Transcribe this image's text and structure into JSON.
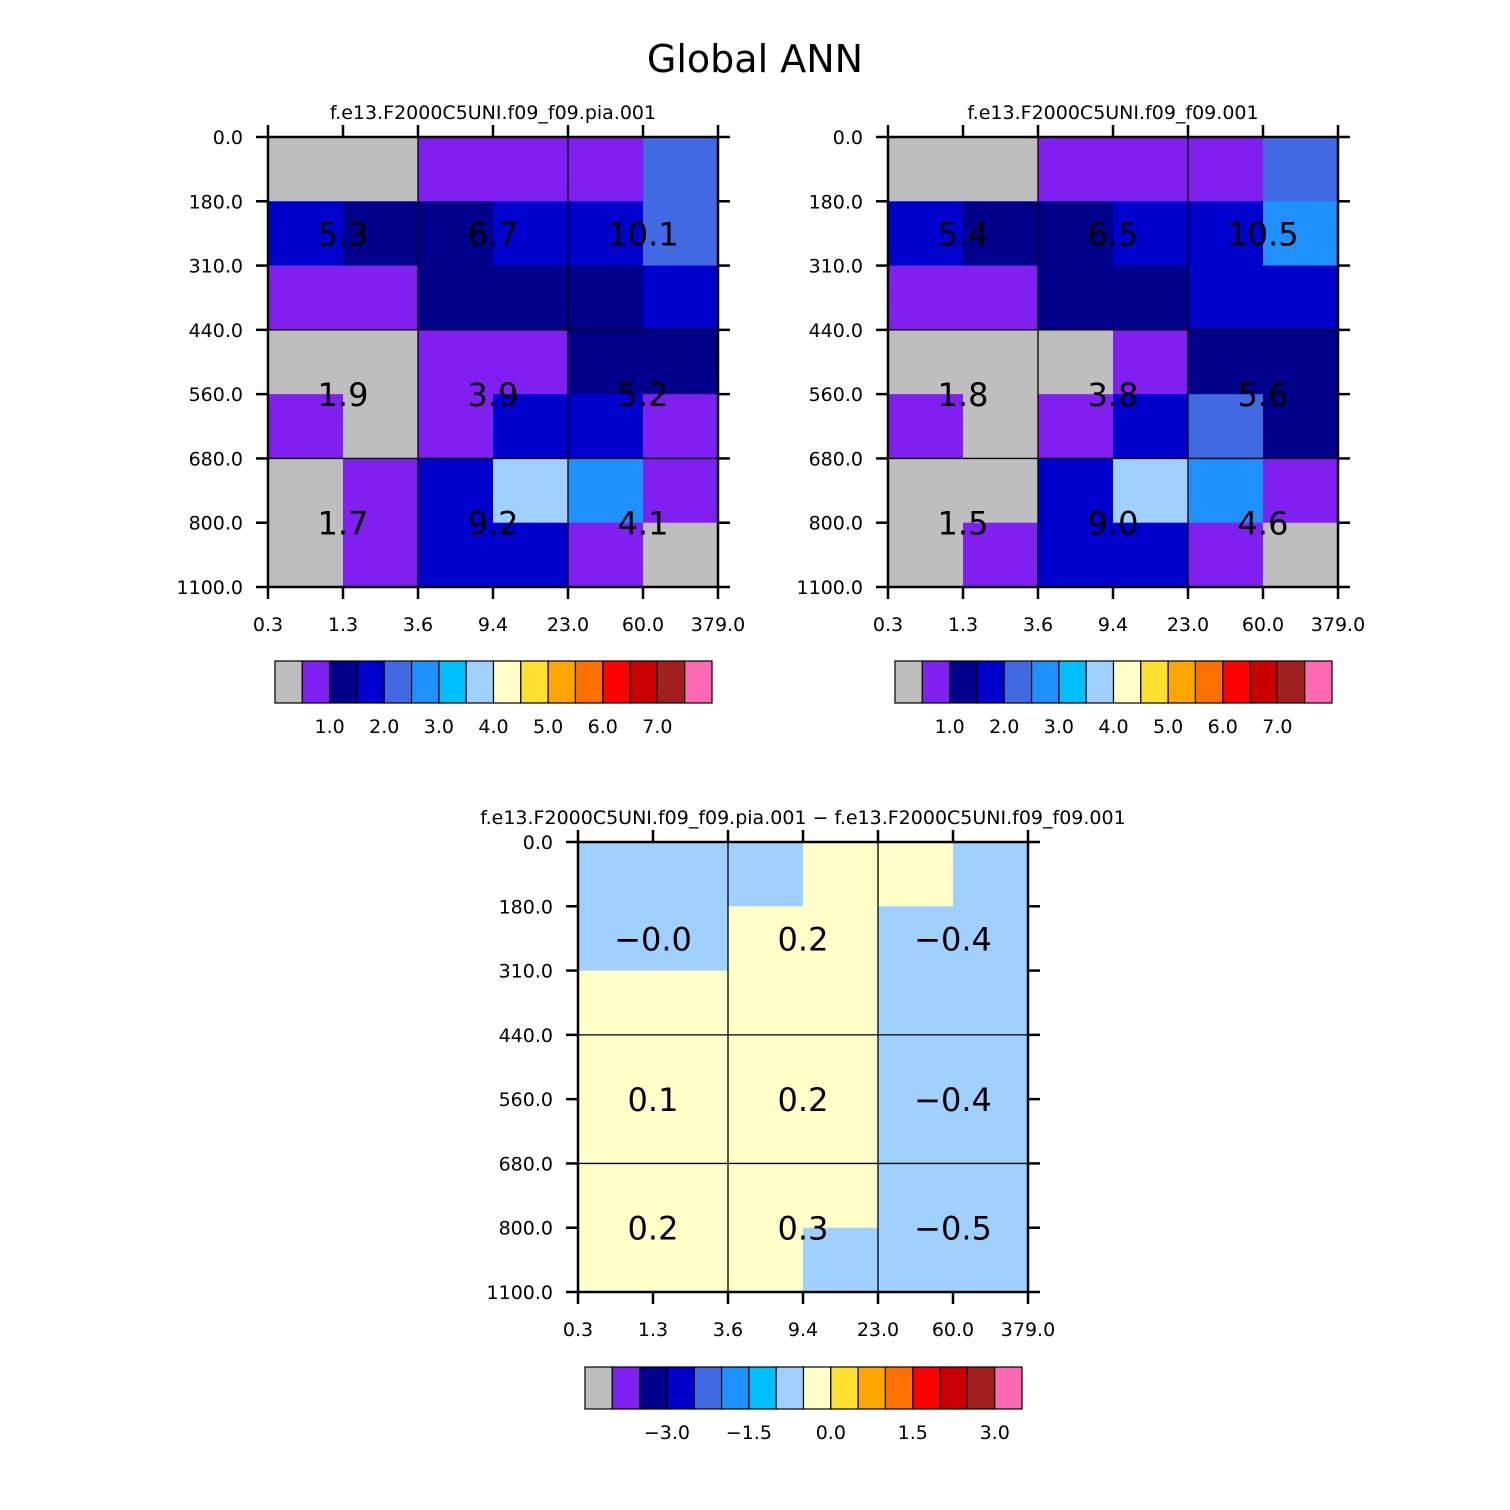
{
  "title": "Global ANN",
  "palette": [
    "#bebebe",
    "#7f20f0",
    "#00008b",
    "#0000cd",
    "#4169e1",
    "#1e90ff",
    "#00bfff",
    "#a0d0ff",
    "#ffffc8",
    "#ffe030",
    "#ffa500",
    "#ff7000",
    "#ff0000",
    "#c80000",
    "#a02020",
    "#ff69b4"
  ],
  "chart_data": [
    {
      "type": "heatmap",
      "title": "f.e13.F2000C5UNI.f09_f09.pia.001",
      "x_tick_labels": [
        "0.3",
        "1.3",
        "3.6",
        "9.4",
        "23.0",
        "60.0",
        "379.0"
      ],
      "y_tick_labels": [
        "0.0",
        "180.0",
        "310.0",
        "440.0",
        "560.0",
        "680.0",
        "800.0",
        "1100.0"
      ],
      "cell_colors": [
        [
          0,
          0,
          1,
          1,
          1,
          4
        ],
        [
          3,
          2,
          2,
          3,
          3,
          4
        ],
        [
          1,
          1,
          2,
          2,
          2,
          3
        ],
        [
          0,
          0,
          1,
          1,
          2,
          2
        ],
        [
          1,
          0,
          1,
          3,
          3,
          1
        ],
        [
          0,
          1,
          3,
          7,
          5,
          1
        ],
        [
          0,
          1,
          3,
          3,
          1,
          0
        ]
      ],
      "block_values": [
        [
          "5.3",
          "6.7",
          "10.1"
        ],
        [
          "1.9",
          "3.9",
          "5.2"
        ],
        [
          "1.7",
          "9.2",
          "4.1"
        ]
      ],
      "colorbar_labels": [
        "1.0",
        "2.0",
        "3.0",
        "4.0",
        "5.0",
        "6.0",
        "7.0"
      ]
    },
    {
      "type": "heatmap",
      "title": "f.e13.F2000C5UNI.f09_f09.001",
      "x_tick_labels": [
        "0.3",
        "1.3",
        "3.6",
        "9.4",
        "23.0",
        "60.0",
        "379.0"
      ],
      "y_tick_labels": [
        "0.0",
        "180.0",
        "310.0",
        "440.0",
        "560.0",
        "680.0",
        "800.0",
        "1100.0"
      ],
      "cell_colors": [
        [
          0,
          0,
          1,
          1,
          1,
          4
        ],
        [
          3,
          2,
          2,
          3,
          3,
          5
        ],
        [
          1,
          1,
          2,
          2,
          3,
          3
        ],
        [
          0,
          0,
          0,
          1,
          2,
          2
        ],
        [
          1,
          0,
          1,
          3,
          4,
          2
        ],
        [
          0,
          0,
          3,
          7,
          5,
          1
        ],
        [
          0,
          1,
          3,
          3,
          1,
          0
        ]
      ],
      "block_values": [
        [
          "5.4",
          "6.5",
          "10.5"
        ],
        [
          "1.8",
          "3.8",
          "5.6"
        ],
        [
          "1.5",
          "9.0",
          "4.6"
        ]
      ],
      "colorbar_labels": [
        "1.0",
        "2.0",
        "3.0",
        "4.0",
        "5.0",
        "6.0",
        "7.0"
      ]
    },
    {
      "type": "heatmap",
      "title": "f.e13.F2000C5UNI.f09_f09.pia.001 − f.e13.F2000C5UNI.f09_f09.001",
      "x_tick_labels": [
        "0.3",
        "1.3",
        "3.6",
        "9.4",
        "23.0",
        "60.0",
        "379.0"
      ],
      "y_tick_labels": [
        "0.0",
        "180.0",
        "310.0",
        "440.0",
        "560.0",
        "680.0",
        "800.0",
        "1100.0"
      ],
      "cell_colors": [
        [
          7,
          7,
          7,
          8,
          8,
          7
        ],
        [
          7,
          7,
          8,
          8,
          7,
          7
        ],
        [
          8,
          8,
          8,
          8,
          7,
          7
        ],
        [
          8,
          8,
          8,
          8,
          7,
          7
        ],
        [
          8,
          8,
          8,
          8,
          7,
          7
        ],
        [
          8,
          8,
          8,
          8,
          7,
          7
        ],
        [
          8,
          8,
          8,
          7,
          7,
          7
        ]
      ],
      "block_values": [
        [
          "−0.0",
          "0.2",
          "−0.4"
        ],
        [
          "0.1",
          "0.2",
          "−0.4"
        ],
        [
          "0.2",
          "0.3",
          "−0.5"
        ]
      ],
      "colorbar_labels": [
        "−3.0",
        "−1.5",
        "0.0",
        "1.5",
        "3.0"
      ]
    }
  ]
}
